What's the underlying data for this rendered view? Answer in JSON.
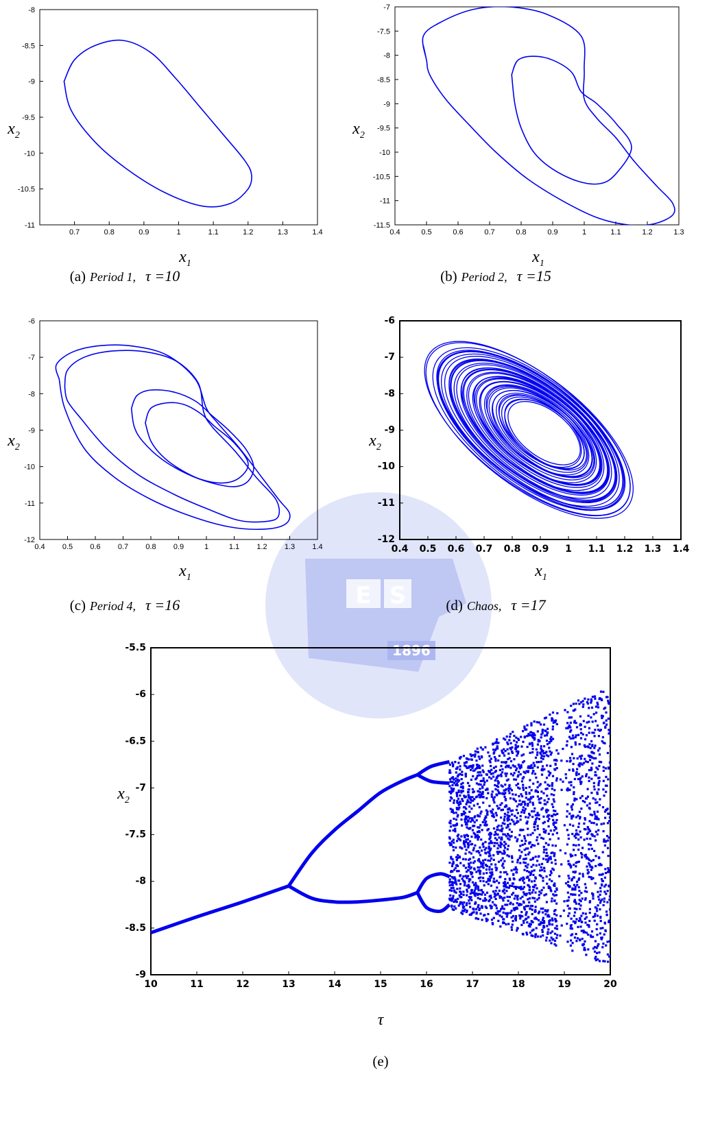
{
  "colors": {
    "curve": "#0000ee",
    "watermark": "#b8bff0",
    "axis": "#000000"
  },
  "watermark": {
    "letters": [
      "E",
      "S"
    ],
    "year": "1896"
  },
  "chart_data": [
    {
      "id": "a",
      "type": "line",
      "caption": {
        "letter": "(a)",
        "text": "Period 1,",
        "tau": "τ =10"
      },
      "xlabel": {
        "var": "x",
        "sub": "1"
      },
      "ylabel": {
        "var": "x",
        "sub": "2"
      },
      "xlim": [
        0.6,
        1.4
      ],
      "ylim": [
        -11,
        -8
      ],
      "xticks": [
        "0.7",
        "0.8",
        "0.9",
        "1",
        "1.1",
        "1.2",
        "1.3",
        "1.4"
      ],
      "yticks": [
        "-8",
        "-8.5",
        "-9",
        "-9.5",
        "-10",
        "-10.5",
        "-11"
      ],
      "series": [
        {
          "x": [
            0.67,
            0.7,
            0.76,
            0.84,
            0.92,
            0.99,
            1.06,
            1.13,
            1.19,
            1.21,
            1.2,
            1.15,
            1.07,
            0.96,
            0.85,
            0.76,
            0.69,
            0.67
          ],
          "y": [
            -9.0,
            -8.7,
            -8.5,
            -8.43,
            -8.6,
            -8.95,
            -9.35,
            -9.75,
            -10.1,
            -10.3,
            -10.5,
            -10.7,
            -10.74,
            -10.55,
            -10.22,
            -9.85,
            -9.4,
            -9.0
          ]
        }
      ]
    },
    {
      "id": "b",
      "type": "line",
      "caption": {
        "letter": "(b)",
        "text": "Period 2,",
        "tau": "τ =15"
      },
      "xlabel": {
        "var": "x",
        "sub": "1"
      },
      "ylabel": {
        "var": "x",
        "sub": "2"
      },
      "xlim": [
        0.4,
        1.3
      ],
      "ylim": [
        -11.5,
        -7
      ],
      "xticks": [
        "0.4",
        "0.5",
        "0.6",
        "0.7",
        "0.8",
        "0.9",
        "1",
        "1.1",
        "1.2",
        "1.3"
      ],
      "yticks": [
        "-7",
        "-7.5",
        "-8",
        "-8.5",
        "-9",
        "-9.5",
        "-10",
        "-10.5",
        "-11",
        "-11.5"
      ],
      "series": [
        {
          "x": [
            0.5,
            0.49,
            0.55,
            0.65,
            0.76,
            0.88,
            0.99,
            1.0,
            1.0,
            1.04,
            1.1,
            1.16,
            1.23,
            1.28,
            1.28,
            1.22,
            1.14,
            1.04,
            0.93,
            0.82,
            0.72,
            0.63,
            0.56,
            0.51,
            0.5,
            0.49
          ],
          "y": [
            -8.1,
            -7.6,
            -7.3,
            -7.05,
            -7.0,
            -7.15,
            -7.6,
            -8.3,
            -8.9,
            -9.3,
            -9.7,
            -10.2,
            -10.7,
            -11.05,
            -11.3,
            -11.48,
            -11.5,
            -11.35,
            -11.0,
            -10.55,
            -10.0,
            -9.4,
            -8.9,
            -8.4,
            -8.1,
            -7.8
          ]
        },
        {
          "x": [
            0.77,
            0.79,
            0.84,
            0.9,
            0.96,
            0.99,
            1.04,
            1.1,
            1.15,
            1.1,
            1.05,
            0.98,
            0.9,
            0.84,
            0.8,
            0.78,
            0.77
          ],
          "y": [
            -8.4,
            -8.1,
            -8.02,
            -8.1,
            -8.35,
            -8.75,
            -9.0,
            -9.4,
            -9.9,
            -10.45,
            -10.65,
            -10.6,
            -10.35,
            -10.0,
            -9.5,
            -9.0,
            -8.4
          ]
        }
      ]
    },
    {
      "id": "c",
      "type": "line",
      "caption": {
        "letter": "(c)",
        "text": "Period 4,",
        "tau": "τ =16"
      },
      "xlabel": {
        "var": "x",
        "sub": "1"
      },
      "ylabel": {
        "var": "x",
        "sub": "2"
      },
      "xlim": [
        0.4,
        1.4
      ],
      "ylim": [
        -12,
        -6
      ],
      "xticks": [
        "0.4",
        "0.5",
        "0.6",
        "0.7",
        "0.8",
        "0.9",
        "1",
        "1.1",
        "1.2",
        "1.3",
        "1.4"
      ],
      "yticks": [
        "-6",
        "-7",
        "-8",
        "-9",
        "-10",
        "-11",
        "-12"
      ],
      "series": [
        {
          "x": [
            0.47,
            0.46,
            0.52,
            0.62,
            0.74,
            0.86,
            0.96,
            1.0,
            1.04,
            1.12,
            1.2,
            1.26,
            1.3,
            1.28,
            1.2,
            1.08,
            0.94,
            0.8,
            0.67,
            0.56,
            0.49,
            0.47
          ],
          "y": [
            -7.6,
            -7.2,
            -6.85,
            -6.68,
            -6.7,
            -6.95,
            -7.6,
            -8.4,
            -8.8,
            -9.5,
            -10.3,
            -10.9,
            -11.3,
            -11.6,
            -11.72,
            -11.65,
            -11.35,
            -10.9,
            -10.3,
            -9.5,
            -8.4,
            -7.6
          ]
        },
        {
          "x": [
            0.49,
            0.5,
            0.56,
            0.66,
            0.78,
            0.89,
            0.97,
            0.99,
            1.02,
            1.1,
            1.18,
            1.25,
            1.26,
            1.22,
            1.12,
            1.0,
            0.88,
            0.75,
            0.64,
            0.55,
            0.5,
            0.49
          ],
          "y": [
            -7.8,
            -7.35,
            -7.0,
            -6.83,
            -6.85,
            -7.1,
            -7.7,
            -8.5,
            -8.9,
            -9.55,
            -10.3,
            -10.9,
            -11.35,
            -11.5,
            -11.48,
            -11.15,
            -10.75,
            -10.2,
            -9.5,
            -8.7,
            -8.2,
            -7.8
          ]
        },
        {
          "x": [
            0.73,
            0.75,
            0.8,
            0.88,
            0.96,
            1.02,
            1.08,
            1.14,
            1.17,
            1.15,
            1.1,
            1.02,
            0.93,
            0.84,
            0.77,
            0.74,
            0.73
          ],
          "y": [
            -8.4,
            -8.05,
            -7.9,
            -7.95,
            -8.2,
            -8.6,
            -9.0,
            -9.5,
            -10.0,
            -10.4,
            -10.55,
            -10.45,
            -10.2,
            -9.8,
            -9.3,
            -8.9,
            -8.4
          ]
        },
        {
          "x": [
            0.78,
            0.8,
            0.86,
            0.92,
            0.98,
            1.03,
            1.1,
            1.15,
            1.12,
            1.06,
            0.98,
            0.9,
            0.84,
            0.8,
            0.78
          ],
          "y": [
            -8.8,
            -8.4,
            -8.25,
            -8.3,
            -8.55,
            -8.9,
            -9.35,
            -9.9,
            -10.3,
            -10.45,
            -10.35,
            -10.05,
            -9.7,
            -9.3,
            -8.8
          ]
        }
      ]
    },
    {
      "id": "d",
      "type": "line",
      "caption": {
        "letter": "(d)",
        "text": "Chaos,",
        "tau": "τ =17"
      },
      "xlabel": {
        "var": "x",
        "sub": "1"
      },
      "ylabel": {
        "var": "x",
        "sub": "2"
      },
      "xlim": [
        0.4,
        1.4
      ],
      "ylim": [
        -12,
        -6
      ],
      "xticks": [
        "0.4",
        "0.5",
        "0.6",
        "0.7",
        "0.8",
        "0.9",
        "1",
        "1.1",
        "1.2",
        "1.3",
        "1.4"
      ],
      "yticks": [
        "-6",
        "-7",
        "-8",
        "-9",
        "-10",
        "-11",
        "-12"
      ],
      "attractor": {
        "cx": 0.86,
        "cy": -9.0,
        "rx_outer": 0.43,
        "ry_outer": 2.7,
        "rx_inner": 0.15,
        "ry_inner": 1.15,
        "tilt": 38
      }
    },
    {
      "id": "e",
      "type": "scatter",
      "caption": {
        "letter": "(e)",
        "text": "",
        "tau": ""
      },
      "xlabel": {
        "var": "τ",
        "sub": ""
      },
      "ylabel": {
        "var": "x",
        "sub": "2"
      },
      "xlim": [
        10,
        20
      ],
      "ylim": [
        -9,
        -5.5
      ],
      "xticks": [
        "10",
        "11",
        "12",
        "13",
        "14",
        "15",
        "16",
        "17",
        "18",
        "19",
        "20"
      ],
      "yticks": [
        "-5.5",
        "-6",
        "-6.5",
        "-7",
        "-7.5",
        "-8",
        "-8.5",
        "-9"
      ],
      "branches": [
        {
          "tau": [
            10,
            11,
            12,
            13
          ],
          "x2": [
            -8.55,
            -8.38,
            -8.22,
            -8.05
          ]
        },
        {
          "tau": [
            13,
            13.5,
            14,
            14.5,
            15,
            15.5,
            15.8
          ],
          "x2": [
            -8.05,
            -7.7,
            -7.45,
            -7.25,
            -7.05,
            -6.92,
            -6.86
          ]
        },
        {
          "tau": [
            13,
            13.5,
            14,
            14.5,
            15,
            15.5,
            15.8
          ],
          "x2": [
            -8.05,
            -8.18,
            -8.22,
            -8.22,
            -8.2,
            -8.17,
            -8.12
          ]
        },
        {
          "tau": [
            15.8,
            16.1,
            16.5
          ],
          "x2": [
            -6.86,
            -6.77,
            -6.72
          ]
        },
        {
          "tau": [
            15.8,
            16.1,
            16.5
          ],
          "x2": [
            -6.86,
            -6.93,
            -6.95
          ]
        },
        {
          "tau": [
            15.8,
            16.0,
            16.3,
            16.5
          ],
          "x2": [
            -8.12,
            -7.97,
            -7.92,
            -7.95
          ]
        },
        {
          "tau": [
            15.8,
            16.0,
            16.3,
            16.5
          ],
          "x2": [
            -8.12,
            -8.28,
            -8.32,
            -8.25
          ]
        }
      ],
      "chaos_region": {
        "tau_start": 16.5,
        "tau_end": 20,
        "upper": [
          -6.72,
          -5.9
        ],
        "lower": [
          -8.3,
          -8.9
        ]
      }
    }
  ]
}
